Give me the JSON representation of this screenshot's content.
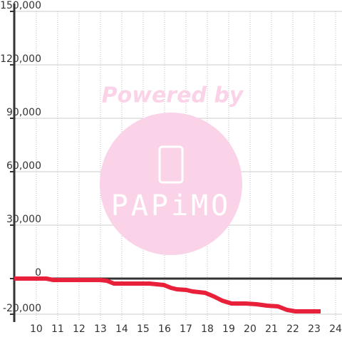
{
  "chart_data": {
    "type": "line",
    "watermark": {
      "text": "Powered by",
      "logo": "PAPiMO"
    },
    "xlim": [
      8.97,
      24.3
    ],
    "xticks": [
      10,
      11,
      12,
      13,
      14,
      15,
      16,
      17,
      18,
      19,
      20,
      21,
      22,
      23,
      24
    ],
    "ylim": [
      -20000,
      150000
    ],
    "yticks": [
      {
        "value": -20000,
        "label": "-20,000"
      },
      0,
      {
        "value": 30000,
        "label": "30,000"
      },
      {
        "value": 60000,
        "label": "60,000"
      },
      {
        "value": 90000,
        "label": "90,000"
      },
      {
        "value": 120000,
        "label": "120,000"
      },
      {
        "value": 150000,
        "label": "150,000"
      }
    ],
    "grid": true,
    "series": [
      {
        "color": "#e8203a",
        "x": [
          8.97,
          10.47,
          10.8,
          12.97,
          13.3,
          13.63,
          15.3,
          15.97,
          16.3,
          16.57,
          17.03,
          17.3,
          17.9,
          18.3,
          18.7,
          19.13,
          19.8,
          20.3,
          20.8,
          21.3,
          21.73,
          22.13,
          23.3
        ],
        "values": [
          0,
          0,
          -800,
          -800,
          -1200,
          -2800,
          -2800,
          -3600,
          -5200,
          -6000,
          -6400,
          -7200,
          -8000,
          -10000,
          -12400,
          -14000,
          -14000,
          -14400,
          -15200,
          -15600,
          -17600,
          -18400,
          -18400
        ]
      }
    ]
  }
}
